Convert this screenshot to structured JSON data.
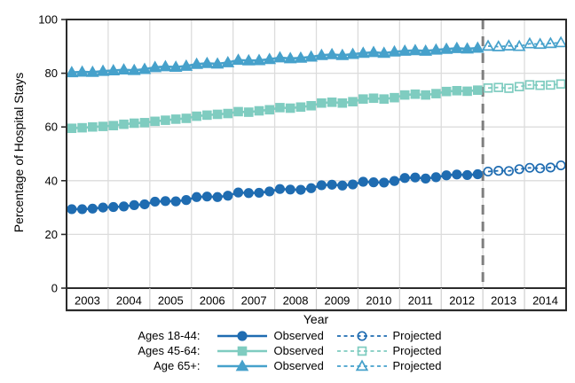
{
  "chart_data": {
    "type": "line",
    "title": "",
    "xlabel": "Year",
    "ylabel": "Percentage of Hospital Stays",
    "ylim": [
      0,
      100
    ],
    "yticks": [
      0,
      20,
      40,
      60,
      80,
      100
    ],
    "year_labels": [
      "2003",
      "2004",
      "2005",
      "2006",
      "2007",
      "2008",
      "2009",
      "2010",
      "2011",
      "2012",
      "2013",
      "2014"
    ],
    "points_per_year": 4,
    "divider_year": 2013,
    "grid": true,
    "legend_position": "bottom",
    "colors": {
      "grid": "#dcdcdc",
      "axis": "#2b2b2b",
      "divider": "#7f7f7f",
      "band_separator": "#cfcfcf"
    },
    "series": [
      {
        "name": "Ages 18-44",
        "legend_label": "Ages 18-44:",
        "marker": "circle",
        "color": "#1f6cb1",
        "observed": [
          29.4,
          29.4,
          29.6,
          30.0,
          30.2,
          30.4,
          30.9,
          31.2,
          32.2,
          32.4,
          32.3,
          32.8,
          33.9,
          34.1,
          33.9,
          34.4,
          35.6,
          35.4,
          35.5,
          36.0,
          36.9,
          36.7,
          36.6,
          37.2,
          38.3,
          38.5,
          38.2,
          38.6,
          39.6,
          39.4,
          39.3,
          39.9,
          41.0,
          41.2,
          40.8,
          41.3,
          42.0,
          42.3,
          42.1,
          42.4
        ],
        "projected": [
          43.4,
          43.7,
          43.6,
          44.3,
          44.8,
          44.6,
          44.9,
          45.7
        ]
      },
      {
        "name": "Ages 45-64",
        "legend_label": "Ages 45-64:",
        "marker": "square",
        "color": "#7fccc0",
        "observed": [
          59.5,
          59.7,
          60.0,
          60.2,
          60.5,
          61.0,
          61.4,
          61.6,
          62.1,
          62.5,
          62.9,
          63.2,
          64.0,
          64.4,
          64.7,
          65.0,
          65.7,
          65.5,
          66.0,
          66.4,
          67.2,
          67.0,
          67.4,
          67.9,
          68.9,
          69.2,
          68.9,
          69.4,
          70.4,
          70.7,
          70.4,
          70.9,
          71.9,
          72.2,
          71.9,
          72.4,
          73.2,
          73.5,
          73.3,
          73.7
        ],
        "projected": [
          74.5,
          74.7,
          74.4,
          75.0,
          75.7,
          75.5,
          75.6,
          76.0
        ]
      },
      {
        "name": "Age 65+",
        "legend_label": "Age 65+:",
        "marker": "triangle",
        "color": "#46a1cb",
        "observed": [
          80.3,
          80.5,
          80.4,
          80.8,
          81.0,
          81.3,
          81.1,
          81.5,
          82.2,
          82.5,
          82.3,
          82.7,
          83.4,
          83.7,
          83.5,
          84.0,
          84.9,
          84.7,
          84.8,
          85.2,
          85.8,
          85.5,
          85.7,
          86.1,
          86.7,
          87.0,
          86.7,
          87.1,
          87.5,
          87.8,
          87.5,
          88.0,
          88.3,
          88.5,
          88.3,
          88.7,
          89.0,
          89.3,
          89.1,
          89.4
        ],
        "projected": [
          90.1,
          89.9,
          90.2,
          90.0,
          91.0,
          90.8,
          91.1,
          91.4
        ]
      }
    ]
  },
  "legend": {
    "observed_label": "Observed",
    "projected_label": "Projected",
    "rows": [
      {
        "label": "Ages 18-44:"
      },
      {
        "label": "Ages 45-64:"
      },
      {
        "label": "Age 65+:"
      }
    ]
  }
}
